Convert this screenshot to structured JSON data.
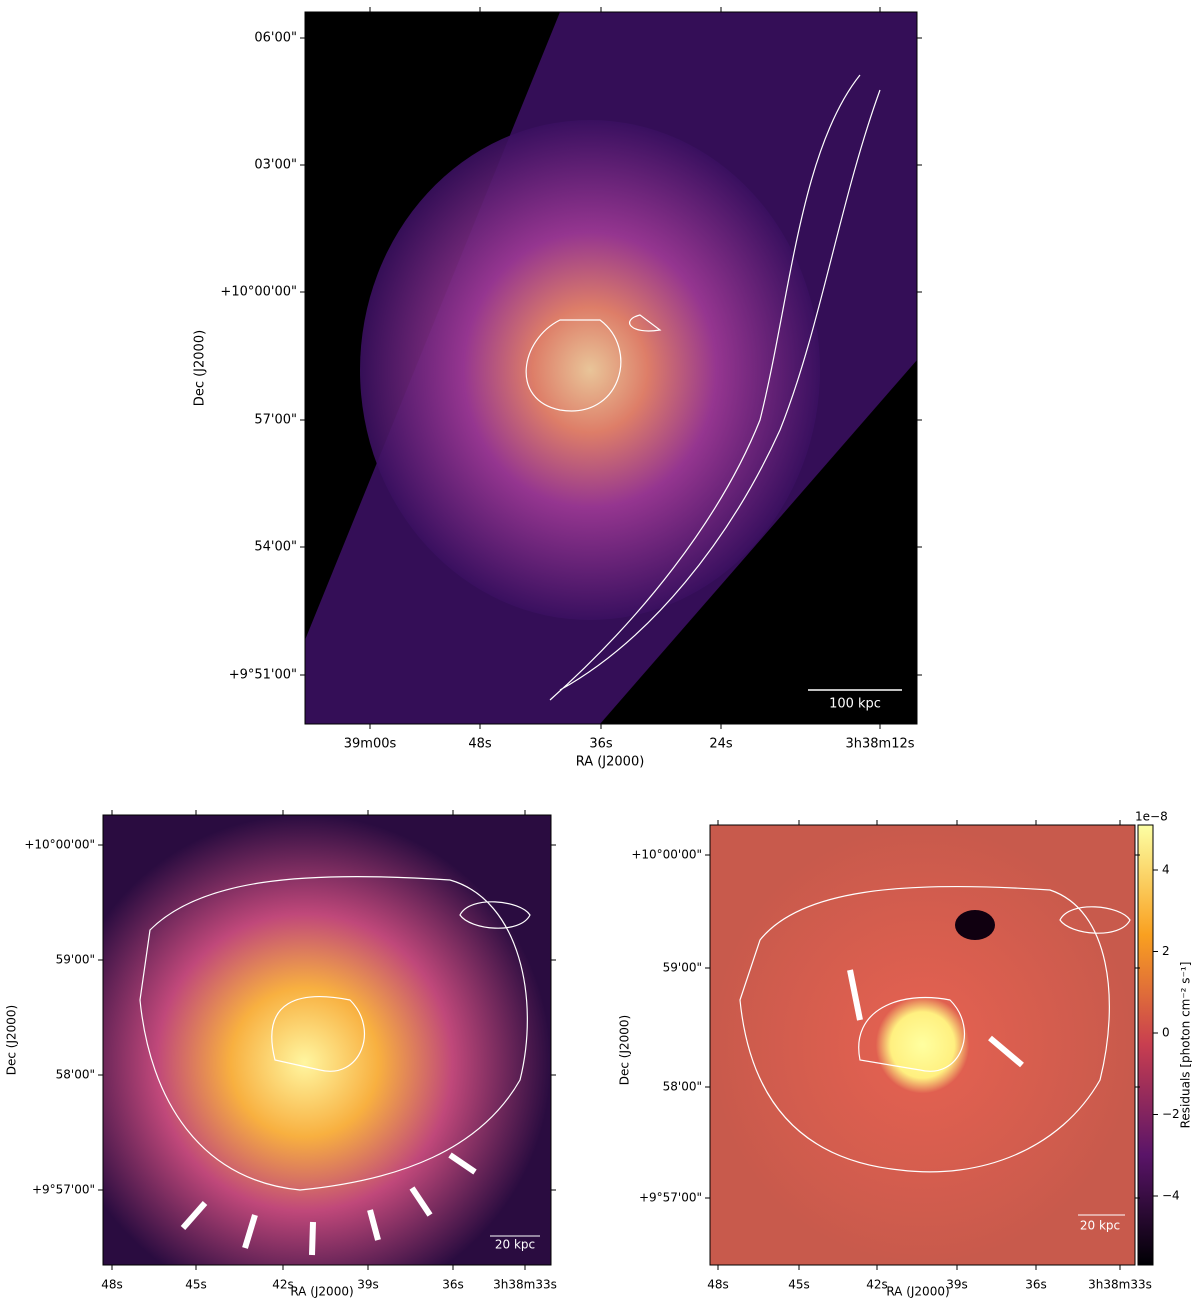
{
  "panels": [
    {
      "x_label": "RA (J2000)",
      "y_label": "Dec (J2000)",
      "x_ticks": [
        "39m00s",
        "48s",
        "36s",
        "24s",
        "3h38m12s"
      ],
      "y_ticks": [
        "06'00\"",
        "03'00\"",
        "+10°00'00\"",
        "57'00\"",
        "54'00\"",
        "+9°51'00\""
      ],
      "scale_bar": "100 kpc"
    },
    {
      "x_label": "RA (J2000)",
      "y_label": "Dec (J2000)",
      "x_ticks": [
        "48s",
        "45s",
        "42s",
        "39s",
        "36s",
        "3h38m33s"
      ],
      "y_ticks": [
        "+10°00'00\"",
        "59'00\"",
        "58'00\"",
        "+9°57'00\""
      ],
      "scale_bar": "20 kpc"
    },
    {
      "x_label": "RA (J2000)",
      "y_label": "Dec (J2000)",
      "x_ticks": [
        "48s",
        "45s",
        "42s",
        "39s",
        "36s",
        "3h38m33s"
      ],
      "y_ticks": [
        "+10°00'00\"",
        "59'00\"",
        "58'00\"",
        "+9°57'00\""
      ],
      "scale_bar": "20 kpc"
    }
  ],
  "colorbar": {
    "label": "Residuals [photon cm⁻² s⁻¹]",
    "offset": "1e−8",
    "ticks": [
      {
        "value": 4,
        "label": "4"
      },
      {
        "value": 2,
        "label": "2"
      },
      {
        "value": 0,
        "label": "0"
      },
      {
        "value": -2,
        "label": "−2"
      },
      {
        "value": -4,
        "label": "−4"
      }
    ]
  }
}
